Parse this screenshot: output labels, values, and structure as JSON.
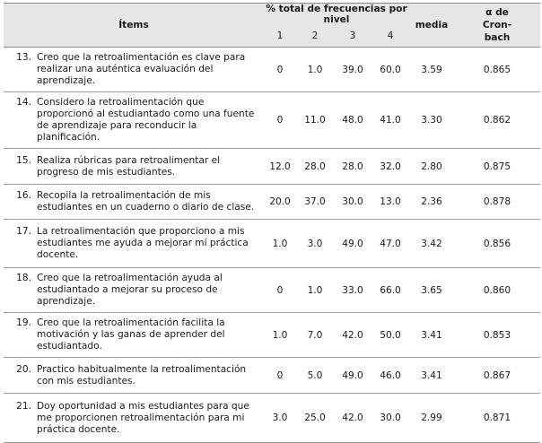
{
  "header": {
    "items": "Ítems",
    "freq_title": "% total de frecuencias por nivel",
    "levels": [
      "1",
      "2",
      "3",
      "4"
    ],
    "media": "media",
    "alpha": "α de Cron-bach"
  },
  "rows": [
    {
      "num": "13.",
      "text": "Creo que la retroalimentación es clave para realizar una auténtica evaluación del aprendizaje.",
      "v1": "0",
      "v2": "1.0",
      "v3": "39.0",
      "v4": "60.0",
      "media": "3.59",
      "alpha": "0.865"
    },
    {
      "num": "14.",
      "text": "Considero la retroalimentación que proporcionó al estudiantado como una fuente de aprendizaje para reconducir la planificación.",
      "v1": "0",
      "v2": "11.0",
      "v3": "48.0",
      "v4": "41.0",
      "media": "3.30",
      "alpha": "0.862"
    },
    {
      "num": "15.",
      "text": "Realiza rúbricas para retroalimentar el progreso de mis estudiantes.",
      "v1": "12.0",
      "v2": "28.0",
      "v3": "28.0",
      "v4": "32.0",
      "media": "2.80",
      "alpha": "0.875"
    },
    {
      "num": "16.",
      "text": "Recopila la retroalimentación de mis estudiantes en un cuaderno o diario de clase.",
      "v1": "20.0",
      "v2": "37.0",
      "v3": "30.0",
      "v4": "13.0",
      "media": "2.36",
      "alpha": "0.878"
    },
    {
      "num": "17.",
      "text": "La retroalimentación que proporciono a mis estudiantes me ayuda a mejorar mi práctica docente.",
      "v1": "1.0",
      "v2": "3.0",
      "v3": "49.0",
      "v4": "47.0",
      "media": "3.42",
      "alpha": "0.856"
    },
    {
      "num": "18.",
      "text": "Creo que la retroalimentación ayuda al estudiantado a mejorar su proceso de aprendizaje.",
      "v1": "0",
      "v2": "1.0",
      "v3": "33.0",
      "v4": "66.0",
      "media": "3.65",
      "alpha": "0.860"
    },
    {
      "num": "19.",
      "text": "Creo que la retroalimentación facilita la motivación y las ganas de aprender del estudiantado.",
      "v1": "1.0",
      "v2": "7.0",
      "v3": "42.0",
      "v4": "50.0",
      "media": "3.41",
      "alpha": "0.853"
    },
    {
      "num": "20.",
      "text": "Practico habitualmente la retroalimentación con mis estudiantes.",
      "v1": "0",
      "v2": "5.0",
      "v3": "49.0",
      "v4": "46.0",
      "media": "3.41",
      "alpha": "0.867"
    },
    {
      "num": "21.",
      "text": "Doy oportunidad a mis estudiantes para que me proporcionen retroalimentación para mi práctica docente.",
      "v1": "3.0",
      "v2": "25.0",
      "v3": "42.0",
      "v4": "30.0",
      "media": "2.99",
      "alpha": "0.871"
    }
  ]
}
